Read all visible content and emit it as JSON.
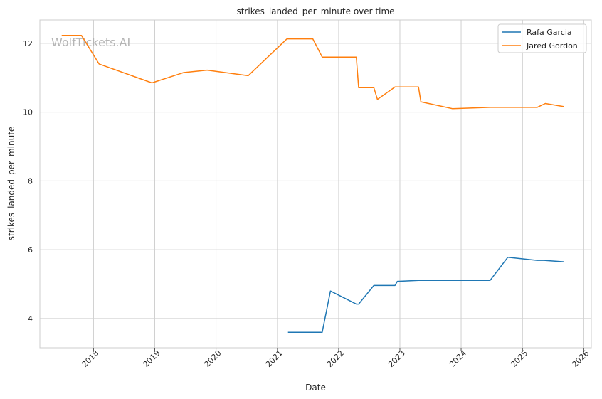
{
  "chart_data": {
    "type": "line",
    "title": "strikes_landed_per_minute over time",
    "xlabel": "Date",
    "ylabel": "strikes_landed_per_minute",
    "watermark": "WolfTickets.AI",
    "x_ticks": [
      "2018",
      "2019",
      "2020",
      "2021",
      "2022",
      "2023",
      "2024",
      "2025",
      "2026"
    ],
    "y_ticks": [
      4,
      6,
      8,
      10,
      12
    ],
    "xlim": [
      "2017-02-15",
      "2026-02-15"
    ],
    "ylim": [
      3.15,
      12.68
    ],
    "grid": true,
    "legend_position": "top-right",
    "series": [
      {
        "name": "Rafa Garcia",
        "color": "#1f77b4",
        "points": [
          [
            "2021-03-05",
            3.6
          ],
          [
            "2021-09-25",
            3.6
          ],
          [
            "2021-11-13",
            4.8
          ],
          [
            "2022-04-16",
            4.42
          ],
          [
            "2022-04-30",
            4.42
          ],
          [
            "2022-07-30",
            4.96
          ],
          [
            "2022-12-03",
            4.96
          ],
          [
            "2022-12-17",
            5.08
          ],
          [
            "2023-04-22",
            5.11
          ],
          [
            "2024-06-22",
            5.11
          ],
          [
            "2024-10-05",
            5.78
          ],
          [
            "2025-03-29",
            5.69
          ],
          [
            "2025-05-10",
            5.69
          ],
          [
            "2025-09-05",
            5.65
          ]
        ]
      },
      {
        "name": "Jared Gordon",
        "color": "#ff7f0e",
        "points": [
          [
            "2017-06-25",
            12.23
          ],
          [
            "2017-10-21",
            12.23
          ],
          [
            "2018-02-03",
            11.4
          ],
          [
            "2018-12-15",
            10.85
          ],
          [
            "2019-06-22",
            11.15
          ],
          [
            "2019-11-09",
            11.22
          ],
          [
            "2020-07-11",
            11.06
          ],
          [
            "2021-02-27",
            12.13
          ],
          [
            "2021-07-31",
            12.13
          ],
          [
            "2021-09-25",
            11.6
          ],
          [
            "2022-04-16",
            11.6
          ],
          [
            "2022-04-30",
            10.71
          ],
          [
            "2022-07-30",
            10.71
          ],
          [
            "2022-08-20",
            10.37
          ],
          [
            "2022-12-03",
            10.73
          ],
          [
            "2023-04-22",
            10.73
          ],
          [
            "2023-05-06",
            10.3
          ],
          [
            "2023-11-11",
            10.1
          ],
          [
            "2024-06-22",
            10.14
          ],
          [
            "2025-03-29",
            10.14
          ],
          [
            "2025-05-17",
            10.25
          ],
          [
            "2025-09-05",
            10.16
          ]
        ]
      }
    ]
  }
}
